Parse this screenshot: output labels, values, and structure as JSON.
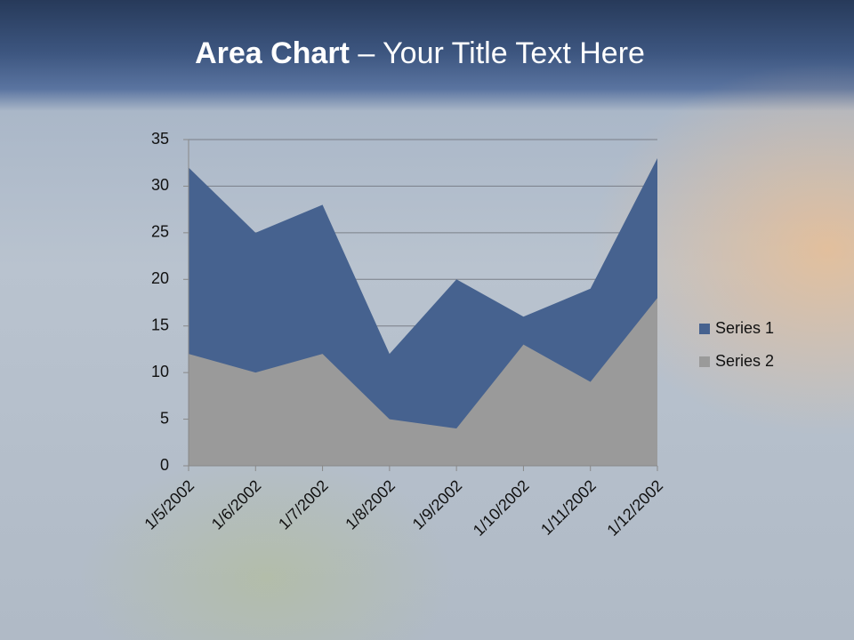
{
  "chart_data": {
    "type": "area",
    "title": [
      "Area Chart",
      "– Your Title Text Here"
    ],
    "categories": [
      "1/5/2002",
      "1/6/2002",
      "1/7/2002",
      "1/8/2002",
      "1/9/2002",
      "1/10/2002",
      "1/11/2002",
      "1/12/2002"
    ],
    "series": [
      {
        "name": "Series 1",
        "color": "#46628f",
        "values": [
          32,
          25,
          28,
          12,
          20,
          16,
          19,
          33
        ]
      },
      {
        "name": "Series 2",
        "color": "#9a9a9a",
        "values": [
          12,
          10,
          12,
          5,
          4,
          13,
          9,
          18
        ]
      }
    ],
    "ylim": [
      0,
      35
    ],
    "yticks": [
      0,
      5,
      10,
      15,
      20,
      25,
      30,
      35
    ],
    "grid": true,
    "legend": "right"
  }
}
